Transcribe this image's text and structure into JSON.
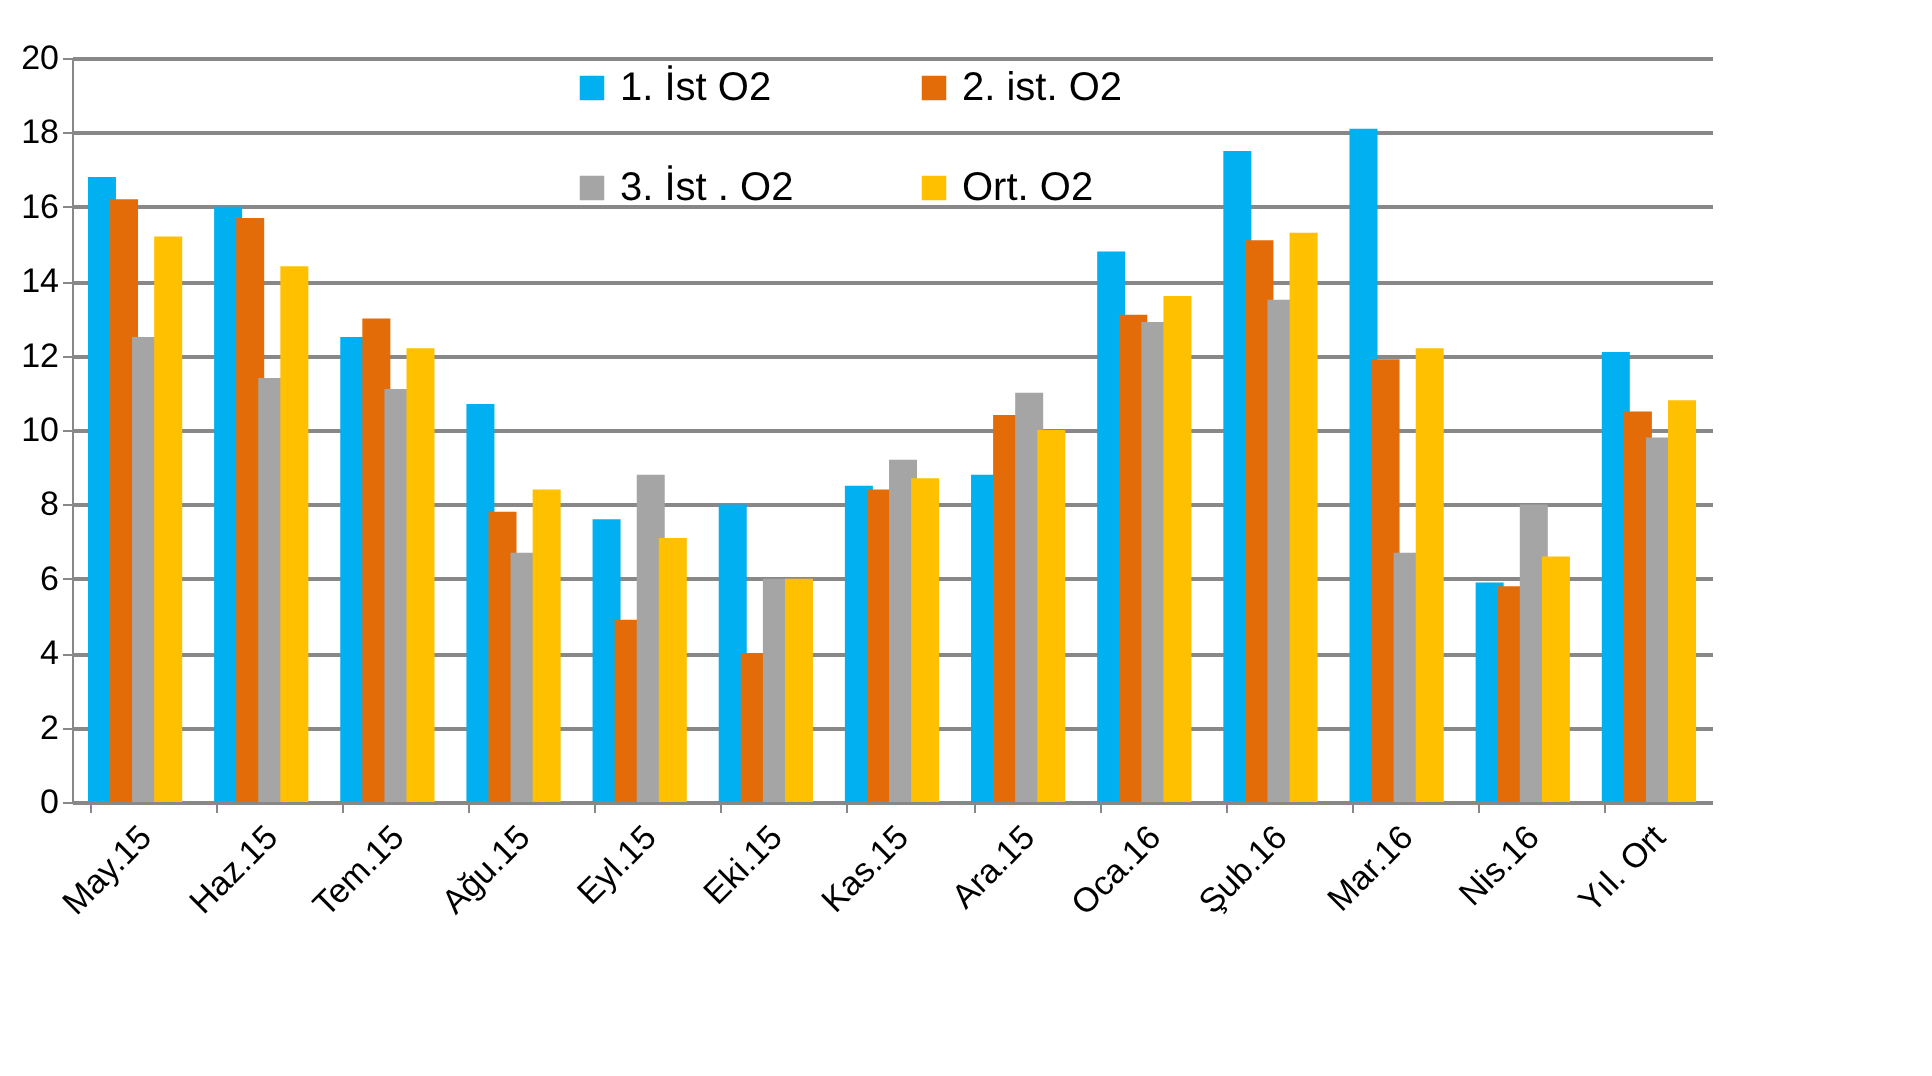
{
  "chart_data": {
    "type": "bar",
    "categories": [
      "May.15",
      "Haz.15",
      "Tem.15",
      "Ağu.15",
      "Eyl.15",
      "Eki.15",
      "Kas.15",
      "Ara.15",
      "Oca.16",
      "Şub.16",
      "Mar.16",
      "Nis.16",
      "Yıl. Ort"
    ],
    "series": [
      {
        "name": "1. İst O2",
        "color": "#00b0f0",
        "values": [
          16.8,
          16.0,
          12.5,
          10.7,
          7.6,
          8.0,
          8.5,
          8.8,
          14.8,
          17.5,
          18.1,
          5.9,
          12.1
        ]
      },
      {
        "name": "2. ist. O2",
        "color": "#e36c09",
        "values": [
          16.2,
          15.7,
          13.0,
          7.8,
          4.9,
          4.0,
          8.4,
          10.4,
          13.1,
          15.1,
          11.9,
          5.8,
          10.5
        ]
      },
      {
        "name": "3. İst . O2",
        "color": "#a5a5a5",
        "values": [
          12.5,
          11.4,
          11.1,
          6.7,
          8.8,
          6.0,
          9.2,
          11.0,
          12.9,
          13.5,
          6.7,
          8.0,
          9.8
        ]
      },
      {
        "name": "Ort. O2",
        "color": "#ffc000",
        "values": [
          15.2,
          14.4,
          12.2,
          8.4,
          7.1,
          6.0,
          8.7,
          10.0,
          13.6,
          15.3,
          12.2,
          6.6,
          10.8
        ]
      }
    ],
    "ylim": [
      0,
      20
    ],
    "yticks": [
      0,
      2,
      4,
      6,
      8,
      10,
      12,
      14,
      16,
      18,
      20
    ],
    "grid": "y",
    "legend": "top"
  }
}
